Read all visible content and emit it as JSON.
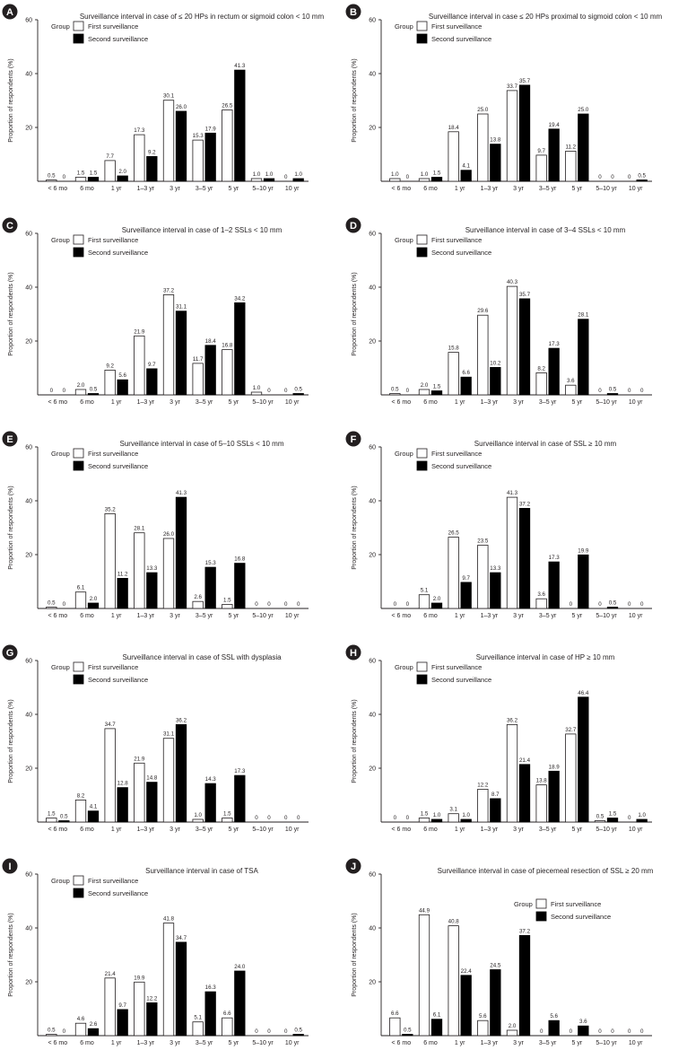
{
  "shared": {
    "categories": [
      "< 6 mo",
      "6 mo",
      "1 yr",
      "1–3 yr",
      "3 yr",
      "3–5 yr",
      "5 yr",
      "5–10 yr",
      "10 yr"
    ],
    "ylabel": "Proportion of respondents (%)",
    "yticks": [
      20,
      40,
      60
    ],
    "legend_title": "Group",
    "series_names": [
      "First surveillance",
      "Second surveillance"
    ]
  },
  "chart_data": [
    {
      "panel": "A",
      "type": "bar",
      "title": "Surveillance interval in case of ≤ 20 HPs in rectum or sigmoid colon < 10 mm",
      "ylim": [
        0,
        60
      ],
      "series": [
        {
          "name": "First surveillance",
          "values": [
            0.5,
            1.5,
            7.7,
            17.3,
            30.1,
            15.3,
            26.5,
            1.0,
            0
          ]
        },
        {
          "name": "Second surveillance",
          "values": [
            0,
            1.5,
            2.0,
            9.2,
            26.0,
            17.9,
            41.3,
            1.0,
            1.0
          ]
        }
      ]
    },
    {
      "panel": "B",
      "type": "bar",
      "title": "Surveillance interval in case ≤ 20 HPs proximal to sigmoid colon < 10 mm",
      "ylim": [
        0,
        60
      ],
      "series": [
        {
          "name": "First surveillance",
          "values": [
            1.0,
            1.0,
            18.4,
            25.0,
            33.7,
            9.7,
            11.2,
            0,
            0
          ]
        },
        {
          "name": "Second surveillance",
          "values": [
            0,
            1.5,
            4.1,
            13.8,
            35.7,
            19.4,
            25.0,
            0,
            0.5
          ]
        }
      ]
    },
    {
      "panel": "C",
      "type": "bar",
      "title": "Surveillance interval in case of 1–2 SSLs < 10 mm",
      "ylim": [
        0,
        60
      ],
      "series": [
        {
          "name": "First surveillance",
          "values": [
            0,
            2.0,
            9.2,
            21.9,
            37.2,
            11.7,
            16.8,
            1.0,
            0
          ]
        },
        {
          "name": "Second surveillance",
          "values": [
            0,
            0.5,
            5.6,
            9.7,
            31.1,
            18.4,
            34.2,
            0,
            0.5
          ]
        }
      ]
    },
    {
      "panel": "D",
      "type": "bar",
      "title": "Surveillance interval in case of 3–4 SSLs < 10 mm",
      "ylim": [
        0,
        60
      ],
      "series": [
        {
          "name": "First surveillance",
          "values": [
            0.5,
            2.0,
            15.8,
            29.6,
            40.3,
            8.2,
            3.6,
            0,
            0
          ]
        },
        {
          "name": "Second surveillance",
          "values": [
            0,
            1.5,
            6.6,
            10.2,
            35.7,
            17.3,
            28.1,
            0.5,
            0
          ]
        }
      ]
    },
    {
      "panel": "E",
      "type": "bar",
      "title": "Surveillance interval in case of 5–10 SSLs < 10 mm",
      "ylim": [
        0,
        60
      ],
      "series": [
        {
          "name": "First surveillance",
          "values": [
            0.5,
            6.1,
            35.2,
            28.1,
            26.0,
            2.6,
            1.5,
            0,
            0
          ]
        },
        {
          "name": "Second surveillance",
          "values": [
            0,
            2.0,
            11.2,
            13.3,
            41.3,
            15.3,
            16.8,
            0,
            0
          ]
        }
      ]
    },
    {
      "panel": "F",
      "type": "bar",
      "title": "Surveillance interval in case of SSL ≥ 10 mm",
      "ylim": [
        0,
        60
      ],
      "series": [
        {
          "name": "First surveillance",
          "values": [
            0,
            5.1,
            26.5,
            23.5,
            41.3,
            3.6,
            0,
            0,
            0
          ]
        },
        {
          "name": "Second surveillance",
          "values": [
            0,
            2.0,
            9.7,
            13.3,
            37.2,
            17.3,
            19.9,
            0.5,
            0
          ]
        }
      ]
    },
    {
      "panel": "G",
      "type": "bar",
      "title": "Surveillance interval in case of SSL with dysplasia",
      "ylim": [
        0,
        60
      ],
      "series": [
        {
          "name": "First surveillance",
          "values": [
            1.5,
            8.2,
            34.7,
            21.9,
            31.1,
            1.0,
            1.5,
            0,
            0
          ]
        },
        {
          "name": "Second surveillance",
          "values": [
            0.5,
            4.1,
            12.8,
            14.8,
            36.2,
            14.3,
            17.3,
            0,
            0
          ]
        }
      ]
    },
    {
      "panel": "H",
      "type": "bar",
      "title": "Surveillance interval in case of HP ≥ 10 mm",
      "ylim": [
        0,
        60
      ],
      "series": [
        {
          "name": "First surveillance",
          "values": [
            0,
            1.5,
            3.1,
            12.2,
            36.2,
            13.8,
            32.7,
            0.5,
            0
          ]
        },
        {
          "name": "Second surveillance",
          "values": [
            0,
            1.0,
            1.0,
            8.7,
            21.4,
            18.9,
            46.4,
            1.5,
            1.0
          ]
        }
      ]
    },
    {
      "panel": "I",
      "type": "bar",
      "title": "Surveillance interval in case of TSA",
      "ylim": [
        0,
        60
      ],
      "series": [
        {
          "name": "First surveillance",
          "values": [
            0.5,
            4.6,
            21.4,
            19.9,
            41.8,
            5.1,
            6.6,
            0,
            0
          ]
        },
        {
          "name": "Second surveillance",
          "values": [
            0,
            2.6,
            9.7,
            12.2,
            34.7,
            16.3,
            24.0,
            0,
            0.5
          ]
        }
      ]
    },
    {
      "panel": "J",
      "type": "bar",
      "title": "Surveillance interval in case of piecemeal resection of SSL ≥ 20 mm",
      "ylim": [
        0,
        60
      ],
      "series": [
        {
          "name": "First surveillance",
          "values": [
            6.6,
            44.9,
            40.8,
            5.6,
            2.0,
            0,
            0,
            0,
            0
          ]
        },
        {
          "name": "Second surveillance",
          "values": [
            0.5,
            6.1,
            22.4,
            24.5,
            37.2,
            5.6,
            3.6,
            0,
            0
          ]
        }
      ]
    }
  ]
}
